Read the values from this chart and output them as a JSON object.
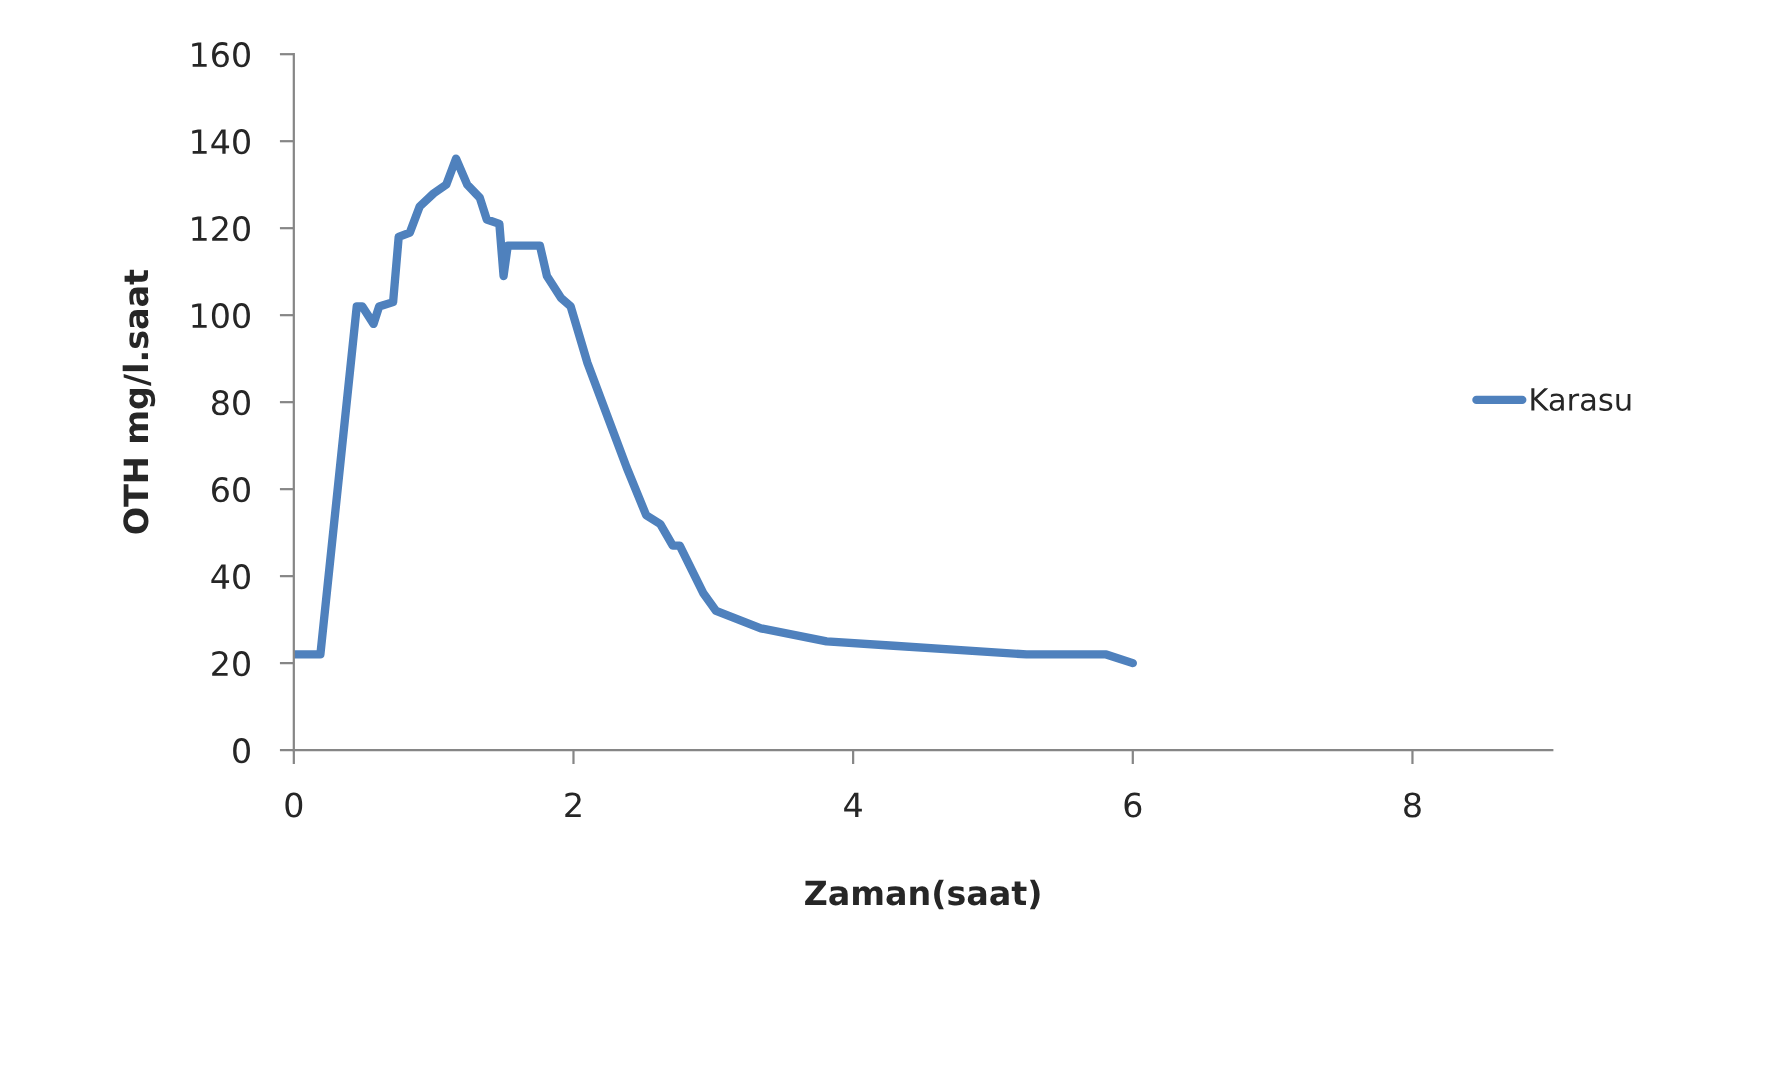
{
  "chart_data": {
    "type": "line",
    "xlabel": "Zaman(saat)",
    "ylabel": "OTH mg/l.saat",
    "xlim": [
      0,
      9
    ],
    "xticks": [
      0,
      2,
      4,
      6,
      8
    ],
    "ylim": [
      0,
      160
    ],
    "yticks": [
      0,
      20,
      40,
      60,
      80,
      100,
      120,
      140,
      160
    ],
    "grid": false,
    "legend": "right",
    "marker": "none",
    "line_style": "solid",
    "series": [
      {
        "name": "Karasu",
        "color": "#4f81bd",
        "x": [
          0,
          0.19,
          0.45,
          0.49,
          0.57,
          0.61,
          0.71,
          0.75,
          0.83,
          0.9,
          1.0,
          1.09,
          1.16,
          1.24,
          1.33,
          1.38,
          1.47,
          1.5,
          1.53,
          1.76,
          1.81,
          1.91,
          1.98,
          2.1,
          2.24,
          2.38,
          2.52,
          2.62,
          2.71,
          2.76,
          2.93,
          3.02,
          3.34,
          3.81,
          4.29,
          4.77,
          5.24,
          5.81,
          6.0
        ],
        "values": [
          22,
          22,
          102,
          102,
          98,
          102,
          103,
          118,
          119,
          125,
          128,
          130,
          136,
          130,
          127,
          122,
          121,
          109,
          116,
          116,
          109,
          104,
          102,
          89,
          77,
          65,
          54,
          52,
          47,
          47,
          36,
          32,
          28,
          25,
          24,
          23,
          22,
          22,
          20
        ]
      }
    ]
  }
}
